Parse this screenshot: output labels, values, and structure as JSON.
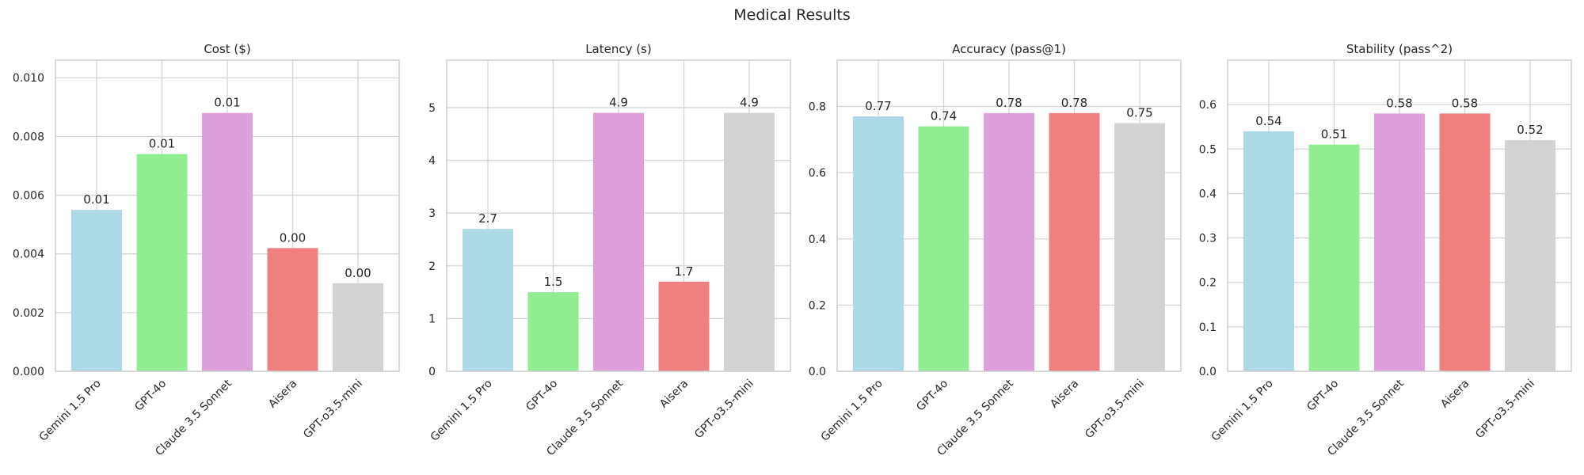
{
  "figure_title": "Medical Results",
  "colors": [
    "#ADD8E6",
    "#90EE90",
    "#DDA0DD",
    "#F08080",
    "#D3D3D3"
  ],
  "grid": true,
  "chart_data": [
    {
      "type": "bar",
      "title": "Cost ($)",
      "categories": [
        "Gemini 1.5 Pro",
        "GPT-4o",
        "Claude 3.5 Sonnet",
        "Aisera",
        "GPT-o3.5-mini"
      ],
      "values": [
        0.0055,
        0.0074,
        0.0088,
        0.0042,
        0.003
      ],
      "data_labels": [
        "0.01",
        "0.01",
        "0.01",
        "0.00",
        "0.00"
      ],
      "ylim": [
        0,
        0.0106
      ],
      "yticks": [
        "0.000",
        "0.002",
        "0.004",
        "0.006",
        "0.008",
        "0.010"
      ],
      "ytick_values": [
        0,
        0.002,
        0.004,
        0.006,
        0.008,
        0.01
      ]
    },
    {
      "type": "bar",
      "title": "Latency (s)",
      "categories": [
        "Gemini 1.5 Pro",
        "GPT-4o",
        "Claude 3.5 Sonnet",
        "Aisera",
        "GPT-o3.5-mini"
      ],
      "values": [
        2.7,
        1.5,
        4.9,
        1.7,
        4.9
      ],
      "data_labels": [
        "2.7",
        "1.5",
        "4.9",
        "1.7",
        "4.9"
      ],
      "ylim": [
        0,
        5.9
      ],
      "yticks": [
        "0",
        "1",
        "2",
        "3",
        "4",
        "5"
      ],
      "ytick_values": [
        0,
        1,
        2,
        3,
        4,
        5
      ]
    },
    {
      "type": "bar",
      "title": "Accuracy (pass@1)",
      "categories": [
        "Gemini 1.5 Pro",
        "GPT-4o",
        "Claude 3.5 Sonnet",
        "Aisera",
        "GPT-o3.5-mini"
      ],
      "values": [
        0.77,
        0.74,
        0.78,
        0.78,
        0.75
      ],
      "data_labels": [
        "0.77",
        "0.74",
        "0.78",
        "0.78",
        "0.75"
      ],
      "ylim": [
        0,
        0.94
      ],
      "yticks": [
        "0.0",
        "0.2",
        "0.4",
        "0.6",
        "0.8"
      ],
      "ytick_values": [
        0,
        0.2,
        0.4,
        0.6,
        0.8
      ]
    },
    {
      "type": "bar",
      "title": "Stability (pass^2)",
      "categories": [
        "Gemini 1.5 Pro",
        "GPT-4o",
        "Claude 3.5 Sonnet",
        "Aisera",
        "GPT-o3.5-mini"
      ],
      "values": [
        0.54,
        0.51,
        0.58,
        0.58,
        0.52
      ],
      "data_labels": [
        "0.54",
        "0.51",
        "0.58",
        "0.58",
        "0.52"
      ],
      "ylim": [
        0,
        0.7
      ],
      "yticks": [
        "0.0",
        "0.1",
        "0.2",
        "0.3",
        "0.4",
        "0.5",
        "0.6"
      ],
      "ytick_values": [
        0,
        0.1,
        0.2,
        0.3,
        0.4,
        0.5,
        0.6
      ]
    }
  ]
}
